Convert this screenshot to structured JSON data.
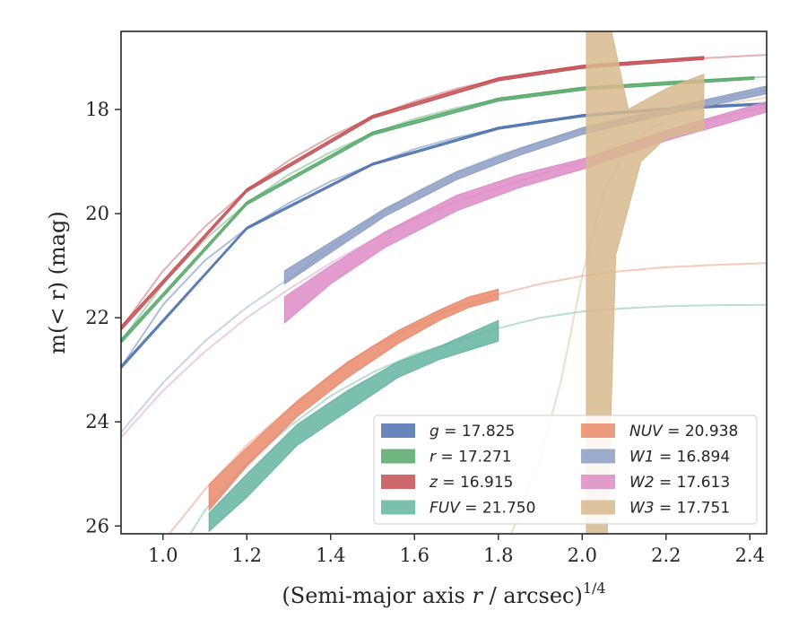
{
  "chart_data": {
    "type": "line",
    "xlabel": "(Semi-major axis r / arcsec)",
    "xlabel_var": "r",
    "xlabel_exp": "1/4",
    "ylabel": "m(< r) (mag)",
    "xlim": [
      0.9,
      2.44
    ],
    "ylim": [
      26.15,
      16.5
    ],
    "y_inverted": true,
    "xticks": [
      "1.0",
      "1.2",
      "1.4",
      "1.6",
      "1.8",
      "2.0",
      "2.2",
      "2.4"
    ],
    "yticks": [
      "18",
      "20",
      "22",
      "24",
      "26"
    ],
    "grid": false,
    "legend_position": "lower-right",
    "legend_columns": 2,
    "series": [
      {
        "name": "g = 17.825",
        "band": "g",
        "mag": "17.825",
        "color": "#4c72b0",
        "model": [
          [
            0.9,
            22.95
          ],
          [
            1.0,
            21.75
          ],
          [
            1.1,
            20.9
          ],
          [
            1.2,
            20.28
          ],
          [
            1.3,
            19.8
          ],
          [
            1.4,
            19.38
          ],
          [
            1.5,
            19.05
          ],
          [
            1.6,
            18.76
          ],
          [
            1.7,
            18.54
          ],
          [
            1.8,
            18.36
          ],
          [
            1.9,
            18.22
          ],
          [
            2.0,
            18.12
          ],
          [
            2.1,
            18.06
          ],
          [
            2.2,
            17.99
          ],
          [
            2.3,
            17.93
          ],
          [
            2.44,
            17.89
          ]
        ],
        "band_upper": [
          [
            0.9,
            22.92
          ],
          [
            1.2,
            20.26
          ],
          [
            1.5,
            19.03
          ],
          [
            1.8,
            18.34
          ],
          [
            2.0,
            18.1
          ],
          [
            2.2,
            17.97
          ],
          [
            2.44,
            17.87
          ]
        ],
        "band_lower": [
          [
            0.9,
            22.98
          ],
          [
            1.2,
            20.3
          ],
          [
            1.5,
            19.07
          ],
          [
            1.8,
            18.38
          ],
          [
            2.0,
            18.14
          ],
          [
            2.2,
            18.01
          ],
          [
            2.44,
            17.91
          ]
        ]
      },
      {
        "name": "r = 17.271",
        "band": "r",
        "mag": "17.271",
        "color": "#55a868",
        "model": [
          [
            0.9,
            22.45
          ],
          [
            1.0,
            21.35
          ],
          [
            1.1,
            20.5
          ],
          [
            1.2,
            19.8
          ],
          [
            1.3,
            19.25
          ],
          [
            1.4,
            18.82
          ],
          [
            1.5,
            18.46
          ],
          [
            1.6,
            18.18
          ],
          [
            1.7,
            17.97
          ],
          [
            1.8,
            17.81
          ],
          [
            1.9,
            17.69
          ],
          [
            2.0,
            17.6
          ],
          [
            2.1,
            17.53
          ],
          [
            2.2,
            17.47
          ],
          [
            2.3,
            17.43
          ],
          [
            2.44,
            17.37
          ]
        ],
        "band_upper": [
          [
            0.9,
            22.41
          ],
          [
            1.2,
            19.77
          ],
          [
            1.5,
            18.43
          ],
          [
            1.8,
            17.78
          ],
          [
            2.0,
            17.57
          ],
          [
            2.41,
            17.37
          ]
        ],
        "band_lower": [
          [
            0.9,
            22.49
          ],
          [
            1.2,
            19.83
          ],
          [
            1.5,
            18.49
          ],
          [
            1.8,
            17.84
          ],
          [
            2.0,
            17.63
          ],
          [
            2.41,
            17.42
          ]
        ]
      },
      {
        "name": "z = 16.915",
        "band": "z",
        "mag": "16.915",
        "color": "#c44e52",
        "model": [
          [
            0.9,
            22.2
          ],
          [
            1.0,
            21.1
          ],
          [
            1.1,
            20.25
          ],
          [
            1.2,
            19.55
          ],
          [
            1.3,
            18.98
          ],
          [
            1.4,
            18.52
          ],
          [
            1.5,
            18.14
          ],
          [
            1.6,
            17.84
          ],
          [
            1.7,
            17.6
          ],
          [
            1.8,
            17.42
          ],
          [
            1.9,
            17.28
          ],
          [
            2.0,
            17.18
          ],
          [
            2.1,
            17.11
          ],
          [
            2.2,
            17.05
          ],
          [
            2.3,
            17.01
          ],
          [
            2.44,
            16.95
          ]
        ],
        "band_upper": [
          [
            0.9,
            22.16
          ],
          [
            1.2,
            19.52
          ],
          [
            1.5,
            18.11
          ],
          [
            1.8,
            17.39
          ],
          [
            2.0,
            17.15
          ],
          [
            2.29,
            16.98
          ]
        ],
        "band_lower": [
          [
            0.9,
            22.24
          ],
          [
            1.2,
            19.58
          ],
          [
            1.5,
            18.17
          ],
          [
            1.8,
            17.45
          ],
          [
            2.0,
            17.21
          ],
          [
            2.29,
            17.04
          ]
        ]
      },
      {
        "name": "FUV = 21.750",
        "band": "FUV",
        "mag": "21.750",
        "color": "#64b5a0",
        "model": [
          [
            1.0,
            27.0
          ],
          [
            1.1,
            25.7
          ],
          [
            1.2,
            24.8
          ],
          [
            1.3,
            24.1
          ],
          [
            1.4,
            23.5
          ],
          [
            1.5,
            23.05
          ],
          [
            1.6,
            22.7
          ],
          [
            1.7,
            22.45
          ],
          [
            1.8,
            22.2
          ],
          [
            1.9,
            22.0
          ],
          [
            2.0,
            21.88
          ],
          [
            2.1,
            21.82
          ],
          [
            2.2,
            21.78
          ],
          [
            2.3,
            21.76
          ],
          [
            2.44,
            21.75
          ]
        ],
        "band_upper": [
          [
            1.11,
            25.75
          ],
          [
            1.2,
            25.0
          ],
          [
            1.32,
            24.05
          ],
          [
            1.44,
            23.4
          ],
          [
            1.56,
            22.85
          ],
          [
            1.66,
            22.55
          ],
          [
            1.8,
            22.05
          ]
        ],
        "band_lower": [
          [
            1.11,
            26.1
          ],
          [
            1.2,
            25.45
          ],
          [
            1.32,
            24.45
          ],
          [
            1.44,
            23.8
          ],
          [
            1.56,
            23.15
          ],
          [
            1.66,
            22.8
          ],
          [
            1.8,
            22.45
          ]
        ]
      },
      {
        "name": "NUV = 20.938",
        "band": "NUV",
        "mag": "20.938",
        "color": "#e9896a",
        "model": [
          [
            1.0,
            26.3
          ],
          [
            1.1,
            25.3
          ],
          [
            1.2,
            24.45
          ],
          [
            1.3,
            23.75
          ],
          [
            1.4,
            23.1
          ],
          [
            1.5,
            22.55
          ],
          [
            1.6,
            22.15
          ],
          [
            1.7,
            21.8
          ],
          [
            1.8,
            21.55
          ],
          [
            1.9,
            21.35
          ],
          [
            2.0,
            21.2
          ],
          [
            2.1,
            21.1
          ],
          [
            2.2,
            21.03
          ],
          [
            2.3,
            20.99
          ],
          [
            2.44,
            20.95
          ]
        ],
        "band_upper": [
          [
            1.11,
            25.2
          ],
          [
            1.2,
            24.5
          ],
          [
            1.32,
            23.6
          ],
          [
            1.44,
            22.85
          ],
          [
            1.56,
            22.25
          ],
          [
            1.66,
            21.85
          ],
          [
            1.73,
            21.6
          ],
          [
            1.8,
            21.45
          ]
        ],
        "band_lower": [
          [
            1.11,
            25.7
          ],
          [
            1.2,
            24.85
          ],
          [
            1.32,
            23.9
          ],
          [
            1.44,
            23.15
          ],
          [
            1.56,
            22.5
          ],
          [
            1.66,
            22.05
          ],
          [
            1.73,
            21.8
          ],
          [
            1.8,
            21.65
          ]
        ]
      },
      {
        "name": "W1 = 16.894",
        "band": "W1",
        "mag": "16.894",
        "color": "#8c9dc4",
        "model": [
          [
            0.9,
            24.2
          ],
          [
            1.0,
            23.25
          ],
          [
            1.1,
            22.45
          ],
          [
            1.2,
            21.8
          ],
          [
            1.3,
            21.25
          ],
          [
            1.4,
            20.65
          ],
          [
            1.5,
            20.1
          ],
          [
            1.6,
            19.6
          ],
          [
            1.7,
            19.2
          ],
          [
            1.8,
            18.88
          ],
          [
            1.9,
            18.62
          ],
          [
            2.0,
            18.4
          ],
          [
            2.1,
            18.2
          ],
          [
            2.2,
            18.02
          ],
          [
            2.3,
            17.85
          ],
          [
            2.44,
            17.62
          ]
        ],
        "band_upper": [
          [
            1.29,
            21.1
          ],
          [
            1.4,
            20.55
          ],
          [
            1.53,
            19.9
          ],
          [
            1.7,
            19.2
          ],
          [
            1.85,
            18.75
          ],
          [
            2.0,
            18.35
          ],
          [
            2.2,
            17.98
          ],
          [
            2.44,
            17.55
          ]
        ],
        "band_lower": [
          [
            1.29,
            21.35
          ],
          [
            1.4,
            20.75
          ],
          [
            1.53,
            20.05
          ],
          [
            1.7,
            19.35
          ],
          [
            1.85,
            18.88
          ],
          [
            2.0,
            18.48
          ],
          [
            2.2,
            18.1
          ],
          [
            2.44,
            17.7
          ]
        ]
      },
      {
        "name": "W2 = 17.613",
        "band": "W2",
        "mag": "17.613",
        "color": "#dd8cc6",
        "model": [
          [
            0.9,
            24.3
          ],
          [
            1.0,
            23.4
          ],
          [
            1.1,
            22.65
          ],
          [
            1.2,
            22.0
          ],
          [
            1.3,
            21.45
          ],
          [
            1.4,
            20.95
          ],
          [
            1.5,
            20.5
          ],
          [
            1.6,
            20.1
          ],
          [
            1.7,
            19.78
          ],
          [
            1.8,
            19.5
          ],
          [
            1.9,
            19.25
          ],
          [
            2.0,
            19.0
          ],
          [
            2.1,
            18.72
          ],
          [
            2.2,
            18.45
          ],
          [
            2.3,
            18.2
          ],
          [
            2.44,
            17.95
          ]
        ],
        "band_upper": [
          [
            1.29,
            21.6
          ],
          [
            1.4,
            21.0
          ],
          [
            1.53,
            20.35
          ],
          [
            1.7,
            19.65
          ],
          [
            1.85,
            19.25
          ],
          [
            2.0,
            18.95
          ],
          [
            2.2,
            18.4
          ],
          [
            2.44,
            17.85
          ]
        ],
        "band_lower": [
          [
            1.29,
            22.1
          ],
          [
            1.4,
            21.35
          ],
          [
            1.53,
            20.65
          ],
          [
            1.7,
            19.95
          ],
          [
            1.85,
            19.5
          ],
          [
            2.0,
            19.15
          ],
          [
            2.2,
            18.6
          ],
          [
            2.44,
            18.05
          ]
        ]
      },
      {
        "name": "W3 = 17.751",
        "band": "W3",
        "mag": "17.751",
        "color": "#d8b98e",
        "model": [
          [
            1.8,
            26.8
          ],
          [
            1.9,
            24.7
          ],
          [
            1.95,
            23.2
          ],
          [
            2.0,
            21.2
          ],
          [
            2.05,
            19.6
          ],
          [
            2.1,
            18.85
          ],
          [
            2.15,
            18.45
          ],
          [
            2.2,
            18.2
          ],
          [
            2.3,
            17.95
          ],
          [
            2.44,
            17.77
          ]
        ],
        "band_upper": [
          [
            2.01,
            16.5
          ],
          [
            2.07,
            16.5
          ],
          [
            2.11,
            18.0
          ],
          [
            2.2,
            17.6
          ],
          [
            2.29,
            17.32
          ]
        ],
        "band_lower": [
          [
            2.01,
            26.15
          ],
          [
            2.06,
            26.15
          ],
          [
            2.08,
            20.8
          ],
          [
            2.14,
            19.0
          ],
          [
            2.2,
            18.55
          ],
          [
            2.29,
            18.4
          ]
        ]
      }
    ]
  }
}
